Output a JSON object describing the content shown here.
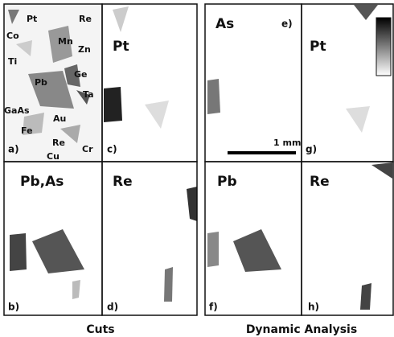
{
  "panels": [
    {
      "tag": "a)",
      "labels": [
        "Co",
        "Pt",
        "Re",
        "Mn",
        "Zn",
        "Ti",
        "Ge",
        "Pb",
        "Ta",
        "GaAs",
        "Au",
        "Fe",
        "Re",
        "Cu",
        "Cr"
      ]
    },
    {
      "tag": "c)",
      "element": "Pt"
    },
    {
      "tag": "b)",
      "element": "Pb,As"
    },
    {
      "tag": "d)",
      "element": "Re"
    },
    {
      "tag": "e)",
      "element": "As"
    },
    {
      "tag": "g)",
      "element": "Pt"
    },
    {
      "tag": "f)",
      "element": "Pb"
    },
    {
      "tag": "h)",
      "element": "Re"
    }
  ],
  "scale_bar": "1 mm",
  "captions": [
    "Cuts",
    "Dynamic Analysis"
  ]
}
